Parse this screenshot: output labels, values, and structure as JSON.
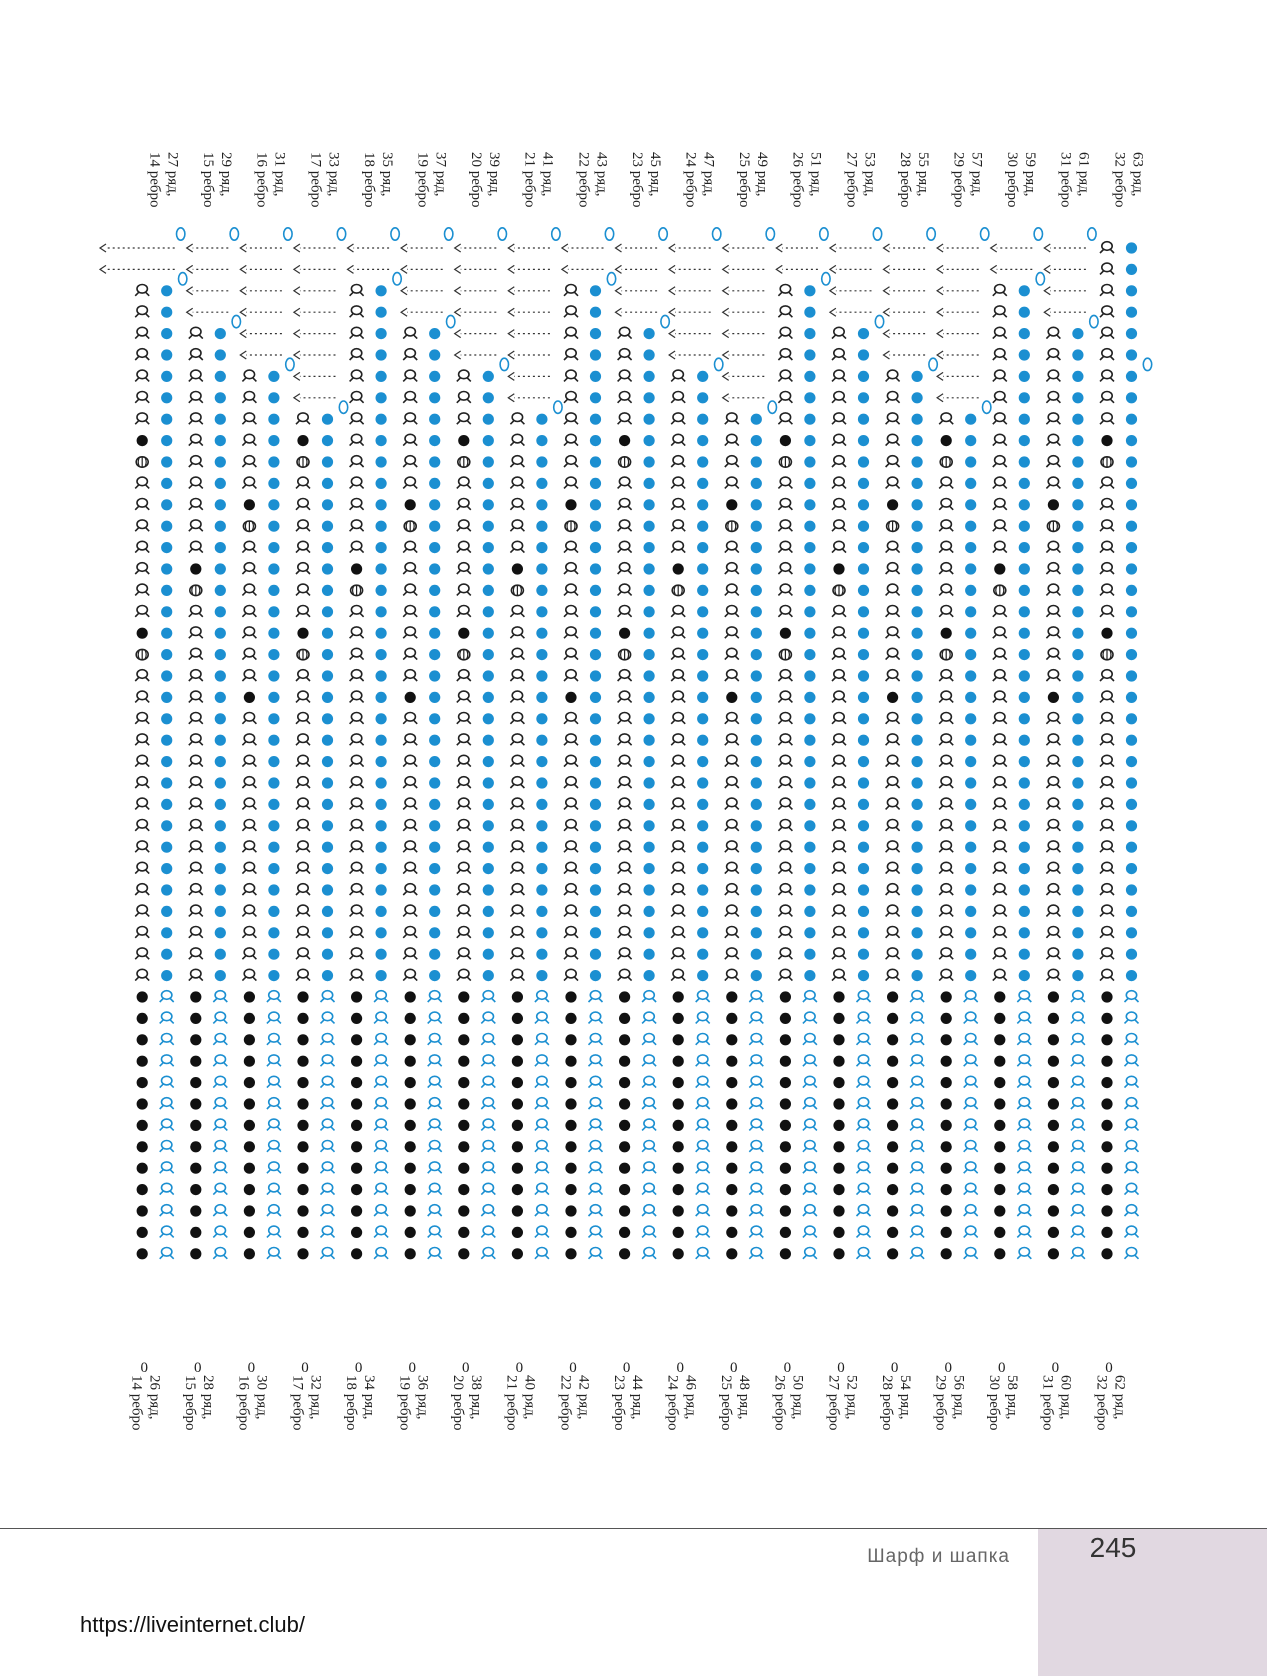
{
  "colors": {
    "blue": "#1b8fd1",
    "black": "#111111",
    "outline": "#222222",
    "arrow": "#333333"
  },
  "symbols": [
    "yarn-over-icon",
    "filled-dot-icon",
    "cross-loop-icon",
    "bobble-icon"
  ],
  "columns": [
    {
      "top": [
        "27 ряд,",
        "14 ребро"
      ],
      "bottom": [
        "26 ряд,",
        "14 ребро"
      ]
    },
    {
      "top": [
        "29 ряд,",
        "15 ребро"
      ],
      "bottom": [
        "28 ряд,",
        "15 ребро"
      ]
    },
    {
      "top": [
        "31 ряд,",
        "16 ребро"
      ],
      "bottom": [
        "30 ряд,",
        "16 ребро"
      ]
    },
    {
      "top": [
        "33 ряд,",
        "17 ребро"
      ],
      "bottom": [
        "32 ряд,",
        "17 ребро"
      ]
    },
    {
      "top": [
        "35 ряд,",
        "18 ребро"
      ],
      "bottom": [
        "34 ряд,",
        "18 ребро"
      ]
    },
    {
      "top": [
        "37 ряд,",
        "19 ребро"
      ],
      "bottom": [
        "36 ряд,",
        "19 ребро"
      ]
    },
    {
      "top": [
        "39 ряд,",
        "20 ребро"
      ],
      "bottom": [
        "38 ряд,",
        "20 ребро"
      ]
    },
    {
      "top": [
        "41 ряд,",
        "21 ребро"
      ],
      "bottom": [
        "40 ряд,",
        "21 ребро"
      ]
    },
    {
      "top": [
        "43 ряд,",
        "22 ребро"
      ],
      "bottom": [
        "42 ряд,",
        "22 ребро"
      ]
    },
    {
      "top": [
        "45 ряд,",
        "23 ребро"
      ],
      "bottom": [
        "44 ряд,",
        "23 ребро"
      ]
    },
    {
      "top": [
        "47 ряд,",
        "24 ребро"
      ],
      "bottom": [
        "46 ряд,",
        "24 ребро"
      ]
    },
    {
      "top": [
        "49 ряд,",
        "25 ребро"
      ],
      "bottom": [
        "48 ряд,",
        "25 ребро"
      ]
    },
    {
      "top": [
        "51 ряд,",
        "26 ребро"
      ],
      "bottom": [
        "50 ряд,",
        "26 ребро"
      ]
    },
    {
      "top": [
        "53 ряд,",
        "27 ребро"
      ],
      "bottom": [
        "52 ряд,",
        "27 ребро"
      ]
    },
    {
      "top": [
        "55 ряд,",
        "28 ребро"
      ],
      "bottom": [
        "54 ряд,",
        "28 ребро"
      ]
    },
    {
      "top": [
        "57 ряд,",
        "29 ребро"
      ],
      "bottom": [
        "56 ряд,",
        "29 ребро"
      ]
    },
    {
      "top": [
        "59 ряд,",
        "30 ребро"
      ],
      "bottom": [
        "58 ряд,",
        "30 ребро"
      ]
    },
    {
      "top": [
        "61 ряд,",
        "31 ребро"
      ],
      "bottom": [
        "60 ряд,",
        "31 ребро"
      ]
    },
    {
      "top": [
        "63 ряд,",
        "32 ребро"
      ],
      "bottom": [
        "62 ряд,",
        "32 ребро"
      ]
    }
  ],
  "bottom_marker": "0",
  "footer": {
    "section_title": "Шарф и шапка",
    "page_number": "245"
  },
  "source_url": "https://liveinternet.club/"
}
